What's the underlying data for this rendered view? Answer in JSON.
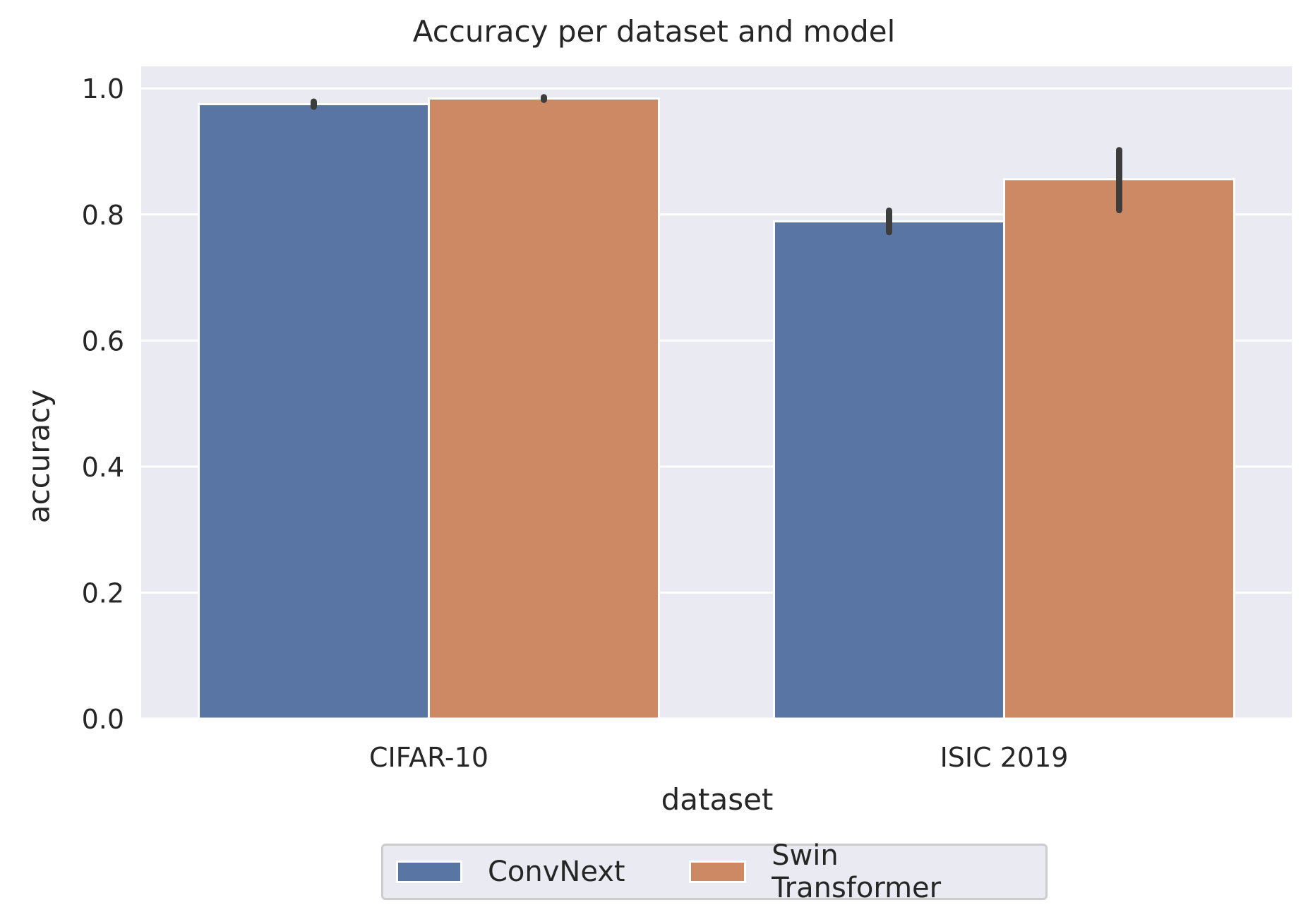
{
  "chart_data": {
    "type": "bar",
    "title": "Accuracy per dataset and model",
    "xlabel": "dataset",
    "ylabel": "accuracy",
    "categories": [
      "CIFAR-10",
      "ISIC 2019"
    ],
    "series": [
      {
        "name": "ConvNext",
        "color": "#5975a4",
        "values": [
          0.975,
          0.789
        ],
        "error": [
          [
            0.971,
            0.979
          ],
          [
            0.772,
            0.806
          ]
        ]
      },
      {
        "name": "Swin Transformer",
        "color": "#cc8963",
        "values": [
          0.984,
          0.856
        ],
        "error": [
          [
            0.982,
            0.986
          ],
          [
            0.807,
            0.902
          ]
        ]
      }
    ],
    "ylim": [
      0,
      1.0
    ],
    "yticks": [
      0.0,
      0.2,
      0.4,
      0.6,
      0.8,
      1.0
    ],
    "ytick_labels": [
      "0.0",
      "0.2",
      "0.4",
      "0.6",
      "0.8",
      "1.0"
    ],
    "grid": true,
    "background": "#eaeaf2",
    "legend_position": "bottom-center"
  }
}
